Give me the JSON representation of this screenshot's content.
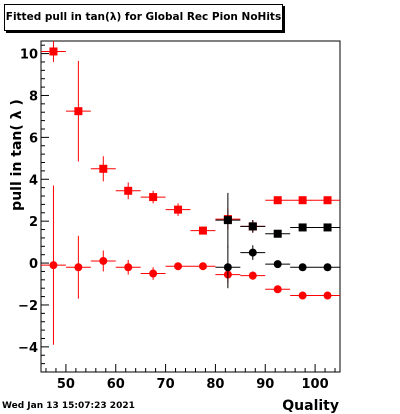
{
  "chart_data": {
    "type": "scatter",
    "title": "Fitted pull in tan(λ) for Global Rec Pion NoHits",
    "xlabel": "Quality",
    "ylabel": "pull in tan( λ )",
    "xlim": [
      45,
      105
    ],
    "ylim": [
      -5.2,
      10.6
    ],
    "x_ticks": [
      "50",
      "60",
      "70",
      "80",
      "90",
      "100"
    ],
    "y_ticks": [
      "−4",
      "−2",
      "0",
      "2",
      "4",
      "6",
      "8",
      "10"
    ],
    "grid": false,
    "legend": "none",
    "series": [
      {
        "color": "#ff0000",
        "marker": "square",
        "points": [
          {
            "x": 47.5,
            "y": 10.1,
            "xerr": 2.5,
            "yerr": 0.5
          },
          {
            "x": 52.5,
            "y": 7.25,
            "xerr": 2.5,
            "yerr": 2.4
          },
          {
            "x": 57.5,
            "y": 4.5,
            "xerr": 2.5,
            "yerr": 0.6
          },
          {
            "x": 62.5,
            "y": 3.45,
            "xerr": 2.5,
            "yerr": 0.4
          },
          {
            "x": 67.5,
            "y": 3.15,
            "xerr": 2.5,
            "yerr": 0.3
          },
          {
            "x": 72.5,
            "y": 2.55,
            "xerr": 2.5,
            "yerr": 0.3
          },
          {
            "x": 77.5,
            "y": 1.55,
            "xerr": 2.5,
            "yerr": 0.15
          },
          {
            "x": 82.5,
            "y": 2.1,
            "xerr": 2.5,
            "yerr": 0.5
          },
          {
            "x": 87.5,
            "y": 1.75,
            "xerr": 2.5,
            "yerr": 0.3
          },
          {
            "x": 92.5,
            "y": 3.0,
            "xerr": 2.5,
            "yerr": 0.1
          },
          {
            "x": 97.5,
            "y": 3.0,
            "xerr": 2.5,
            "yerr": 0.1
          },
          {
            "x": 102.5,
            "y": 3.0,
            "xerr": 2.5,
            "yerr": 0.1
          }
        ]
      },
      {
        "color": "#000000",
        "marker": "square",
        "points": [
          {
            "x": 82.5,
            "y": 2.05,
            "xerr": 2.5,
            "yerr": 1.3
          },
          {
            "x": 87.5,
            "y": 1.75,
            "xerr": 2.5,
            "yerr": 0.3
          },
          {
            "x": 92.5,
            "y": 1.4,
            "xerr": 2.5,
            "yerr": 0.1
          },
          {
            "x": 97.5,
            "y": 1.7,
            "xerr": 2.5,
            "yerr": 0.1
          },
          {
            "x": 102.5,
            "y": 1.7,
            "xerr": 2.5,
            "yerr": 0.1
          }
        ]
      },
      {
        "color": "#ff0000",
        "marker": "circle",
        "points": [
          {
            "x": 47.5,
            "y": -0.1,
            "xerr": 2.5,
            "yerr": 3.8
          },
          {
            "x": 52.5,
            "y": -0.2,
            "xerr": 2.5,
            "yerr": 1.5
          },
          {
            "x": 57.5,
            "y": 0.1,
            "xerr": 2.5,
            "yerr": 0.5
          },
          {
            "x": 62.5,
            "y": -0.2,
            "xerr": 2.5,
            "yerr": 0.35
          },
          {
            "x": 67.5,
            "y": -0.5,
            "xerr": 2.5,
            "yerr": 0.3
          },
          {
            "x": 72.5,
            "y": -0.15,
            "xerr": 2.5,
            "yerr": 0.15
          },
          {
            "x": 77.5,
            "y": -0.15,
            "xerr": 2.5,
            "yerr": 0.1
          },
          {
            "x": 82.5,
            "y": -0.55,
            "xerr": 2.5,
            "yerr": 0.4
          },
          {
            "x": 87.5,
            "y": -0.6,
            "xerr": 2.5,
            "yerr": 0.2
          },
          {
            "x": 92.5,
            "y": -1.25,
            "xerr": 2.5,
            "yerr": 0.1
          },
          {
            "x": 97.5,
            "y": -1.55,
            "xerr": 2.5,
            "yerr": 0.1
          },
          {
            "x": 102.5,
            "y": -1.55,
            "xerr": 2.5,
            "yerr": 0.1
          }
        ]
      },
      {
        "color": "#000000",
        "marker": "circle",
        "points": [
          {
            "x": 82.5,
            "y": -0.2,
            "xerr": 2.5,
            "yerr": 1.0
          },
          {
            "x": 87.5,
            "y": 0.5,
            "xerr": 2.5,
            "yerr": 0.35
          },
          {
            "x": 92.5,
            "y": -0.05,
            "xerr": 2.5,
            "yerr": 0.1
          },
          {
            "x": 97.5,
            "y": -0.2,
            "xerr": 2.5,
            "yerr": 0.1
          },
          {
            "x": 102.5,
            "y": -0.2,
            "xerr": 2.5,
            "yerr": 0.1
          }
        ]
      }
    ]
  },
  "footer": {
    "timestamp": "Wed Jan 13 15:07:23 2021"
  }
}
